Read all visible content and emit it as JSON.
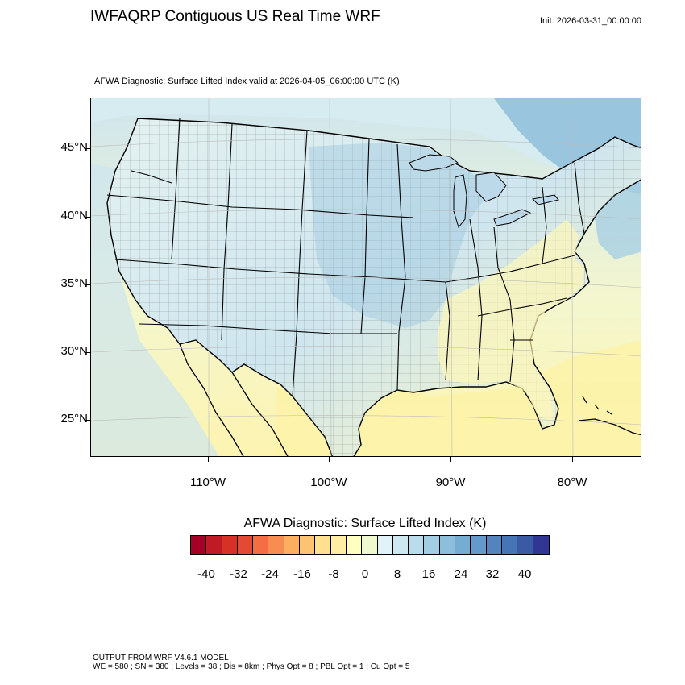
{
  "header": {
    "title": "IWFAQRP Contiguous US Real Time WRF",
    "init": "Init: 2026-03-31_00:00:00",
    "subtitle": "AFWA Diagnostic: Surface Lifted Index valid at 2026-04-05_06:00:00 UTC   (K)"
  },
  "map": {
    "projection": "lambert-conformal",
    "lat_labels": [
      "45°N",
      "40°N",
      "35°N",
      "30°N",
      "25°N"
    ],
    "lon_labels": [
      "110°W",
      "100°W",
      "90°W",
      "80°W"
    ],
    "colors": {
      "land_cool": "#dbeef3",
      "land_warm": "#fdf9c4",
      "ocean_warm": "#fdf5b0",
      "ocean_cool": "#a8d0e4",
      "deep_blue": "#6fa6cd",
      "lakes": "#bcd9ea",
      "border": "#000000"
    }
  },
  "colorbar": {
    "title": "AFWA Diagnostic: Surface Lifted Index  (K)",
    "labels": [
      "-40",
      "-32",
      "-24",
      "-16",
      "-8",
      "0",
      "8",
      "16",
      "24",
      "32",
      "40"
    ],
    "colors": [
      "#a50026",
      "#c01a27",
      "#d73027",
      "#e34a33",
      "#f46d43",
      "#f88d52",
      "#fdae61",
      "#fdc374",
      "#fee090",
      "#feeda3",
      "#ffffbf",
      "#f0f8d0",
      "#e0f3f8",
      "#cde8f1",
      "#b8dcea",
      "#a2cde3",
      "#8dbfdb",
      "#74add1",
      "#649acb",
      "#5484bd",
      "#4575b4",
      "#3a5aa4",
      "#313695"
    ]
  },
  "footer": {
    "line1": "OUTPUT FROM WRF V4.6.1 MODEL",
    "line2": "WE = 580 ; SN = 380 ; Levels = 38 ; Dis = 8km ; Phys Opt = 8 ; PBL Opt = 1 ; Cu Opt = 5"
  }
}
